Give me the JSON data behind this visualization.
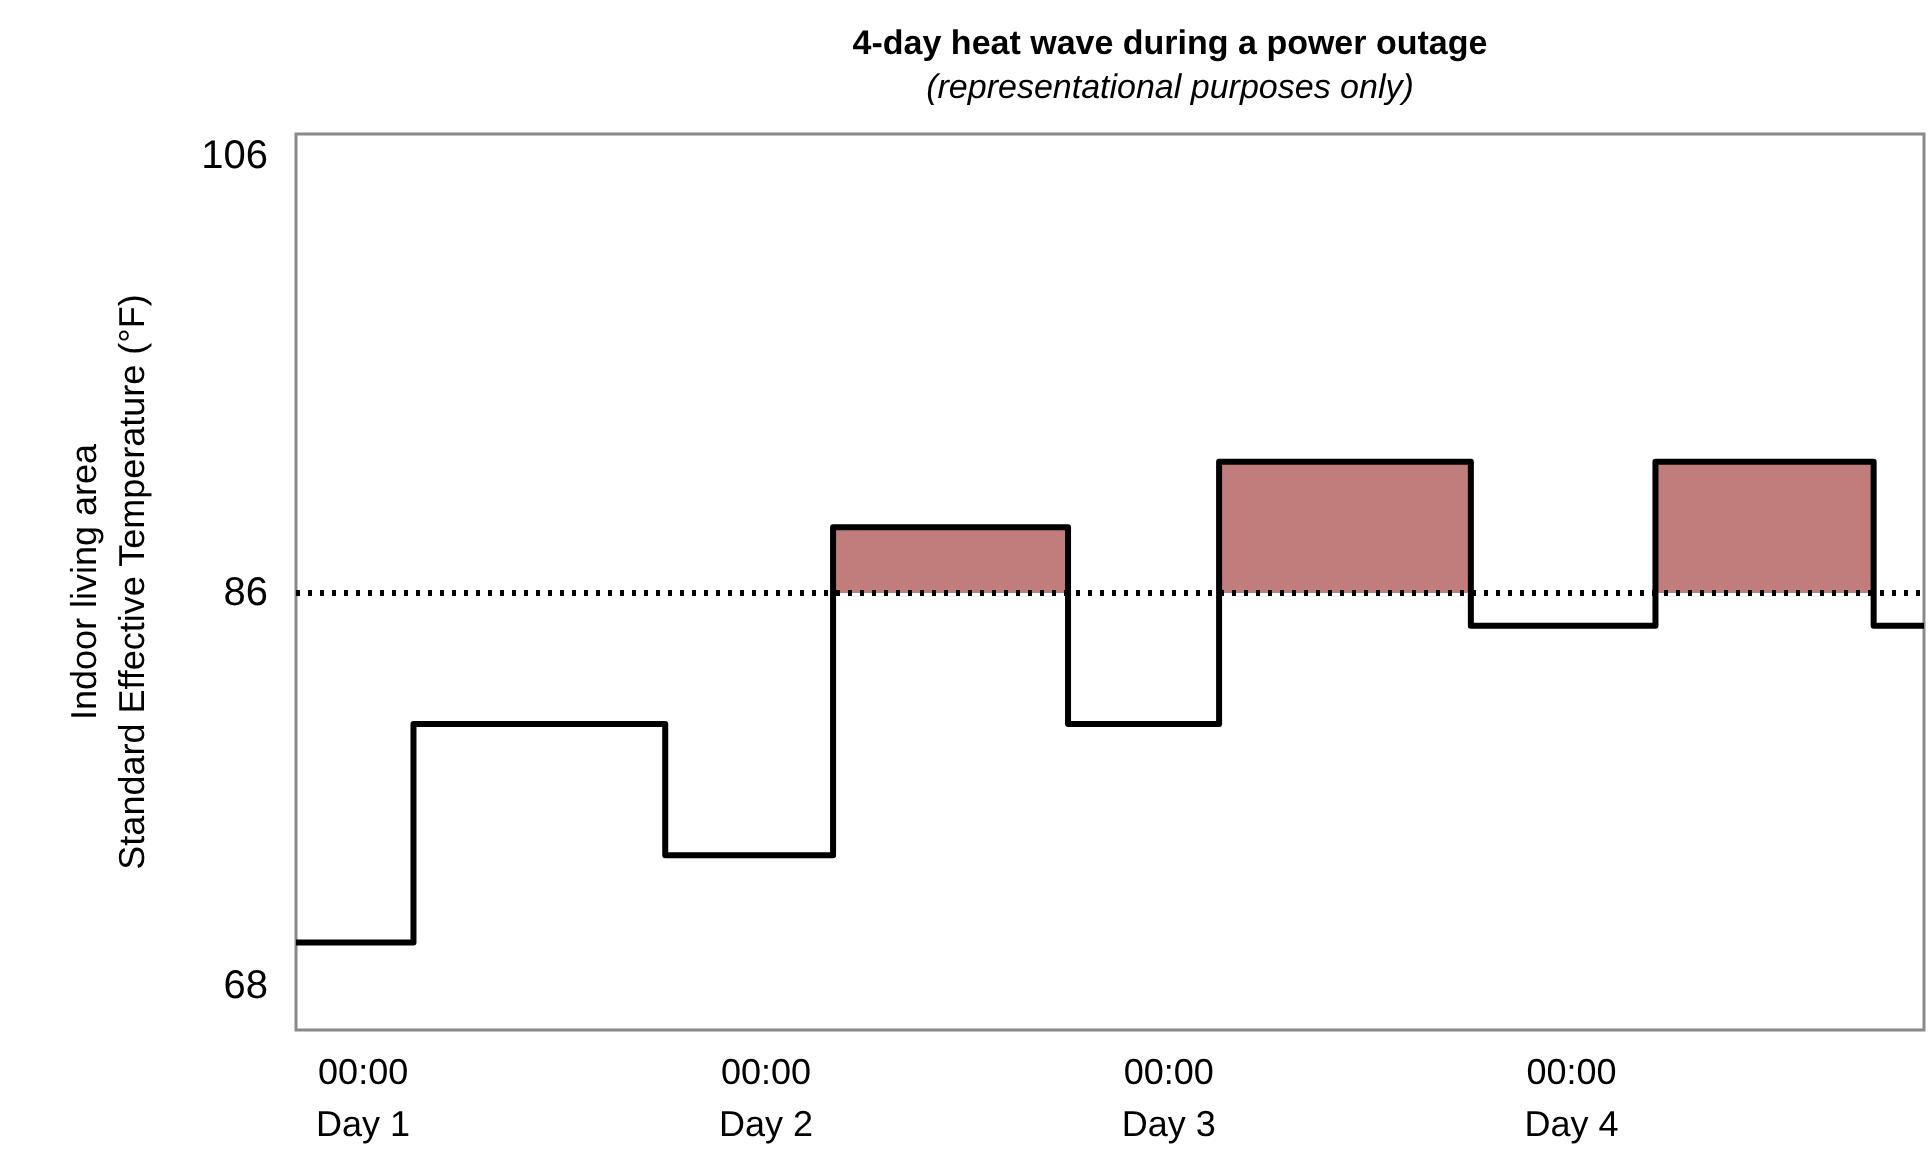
{
  "chart_data": {
    "type": "step",
    "title": "4-day heat wave during a power outage",
    "subtitle": "(representational purposes only)",
    "ylabel": "Indoor living area\nStandard Effective Temperature (°F)",
    "categories": [
      null,
      null,
      null,
      null,
      "00:00\nDay 1",
      null,
      null,
      null,
      null,
      null,
      null,
      null,
      null,
      null,
      null,
      null,
      null,
      null,
      null,
      null,
      null,
      null,
      null,
      null,
      null,
      null,
      null,
      null,
      "00:00\nDay 2",
      null,
      null,
      null,
      null,
      null,
      null,
      null,
      null,
      null,
      null,
      null,
      null,
      null,
      null,
      null,
      null,
      null,
      null,
      null,
      null,
      null,
      null,
      null,
      "00:00\nDay 3",
      null,
      null,
      null,
      null,
      null,
      null,
      null,
      null,
      null,
      null,
      null,
      null,
      null,
      null,
      null,
      null,
      null,
      null,
      null,
      null,
      null,
      null,
      null,
      "00:00\nDay 4",
      null,
      null,
      null,
      null,
      null,
      null,
      null,
      null,
      null,
      null,
      null,
      null,
      null,
      null,
      null,
      null,
      null,
      null,
      null,
      null,
      null
    ],
    "ylim": [
      66,
      107
    ],
    "yticks": [
      68,
      86,
      106
    ],
    "grid": false,
    "marker": "none",
    "series": [
      {
        "type": "area",
        "color": "#c17c7c",
        "values": [
          null,
          null,
          null,
          null,
          null,
          null,
          null,
          null,
          null,
          null,
          null,
          null,
          null,
          null,
          null,
          null,
          null,
          null,
          null,
          null,
          null,
          null,
          null,
          null,
          null,
          null,
          null,
          null,
          null,
          null,
          null,
          null,
          89,
          89,
          89,
          89,
          89,
          89,
          89,
          89,
          89,
          89,
          89,
          89,
          89,
          89,
          89,
          null,
          null,
          null,
          null,
          null,
          null,
          null,
          null,
          92,
          92,
          92,
          92,
          92,
          92,
          92,
          92,
          92,
          92,
          92,
          92,
          92,
          92,
          92,
          92,
          null,
          null,
          null,
          null,
          null,
          null,
          null,
          null,
          null,
          null,
          92,
          92,
          92,
          92,
          92,
          92,
          92,
          92,
          92,
          92,
          92,
          92,
          92,
          92,
          null,
          null,
          null
        ]
      },
      {
        "color": "#000000",
        "values": [
          70,
          70,
          70,
          70,
          70,
          70,
          70,
          80,
          80,
          80,
          80,
          80,
          80,
          80,
          80,
          80,
          80,
          80,
          80,
          80,
          80,
          80,
          74,
          74,
          74,
          74,
          74,
          74,
          74,
          74,
          74,
          74,
          89,
          89,
          89,
          89,
          89,
          89,
          89,
          89,
          89,
          89,
          89,
          89,
          89,
          89,
          80,
          80,
          80,
          80,
          80,
          80,
          80,
          80,
          80,
          92,
          92,
          92,
          92,
          92,
          92,
          92,
          92,
          92,
          92,
          92,
          92,
          92,
          92,
          92,
          84.5,
          84.5,
          84.5,
          84.5,
          84.5,
          84.5,
          84.5,
          84.5,
          84.5,
          84.5,
          84.5,
          92,
          92,
          92,
          92,
          92,
          92,
          92,
          92,
          92,
          92,
          92,
          92,
          92,
          84.5,
          84.5,
          84.5,
          84.5
        ]
      }
    ],
    "ref_lines": [
      {
        "axis": "y",
        "value": 86,
        "label": null,
        "color": "#000000",
        "line_style": "dotted"
      }
    ]
  }
}
